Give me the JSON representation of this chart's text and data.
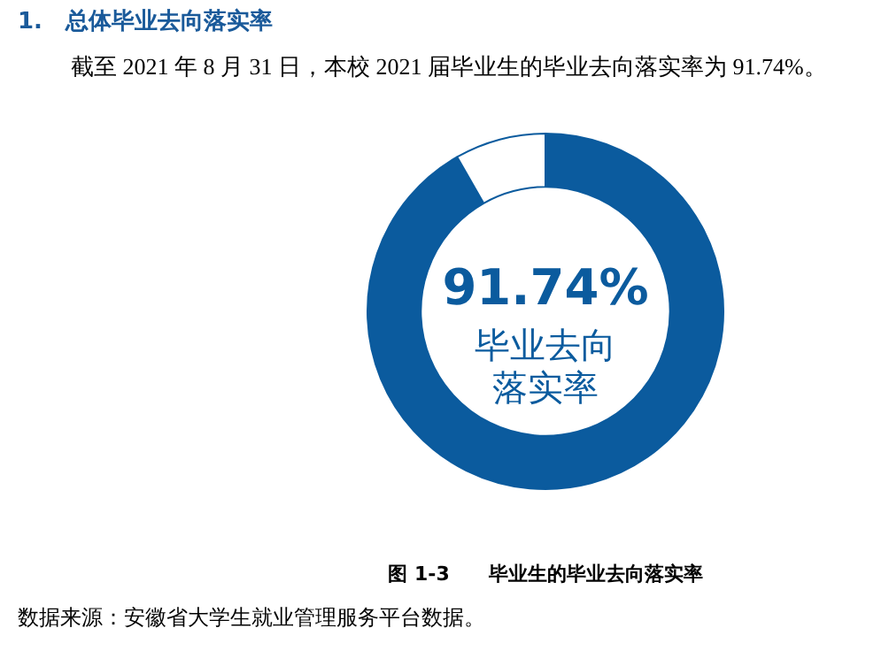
{
  "chart_data": {
    "type": "donut",
    "title": "1.　总体毕业去向落实率",
    "subtitle": "截至 2021 年 8 月 31 日，本校 2021 届毕业生的毕业去向落实率为 91.74%。",
    "categories": [
      null,
      null
    ],
    "values": [
      91.74,
      8.26
    ],
    "colors": [
      "#0b5b9e",
      "#ffffff"
    ],
    "annotations": [
      "91.74%",
      "毕业去向落实率",
      "图 1-3　　毕业生的毕业去向落实率",
      "数据来源：安徽省大学生就业管理服务平台数据。"
    ]
  }
}
